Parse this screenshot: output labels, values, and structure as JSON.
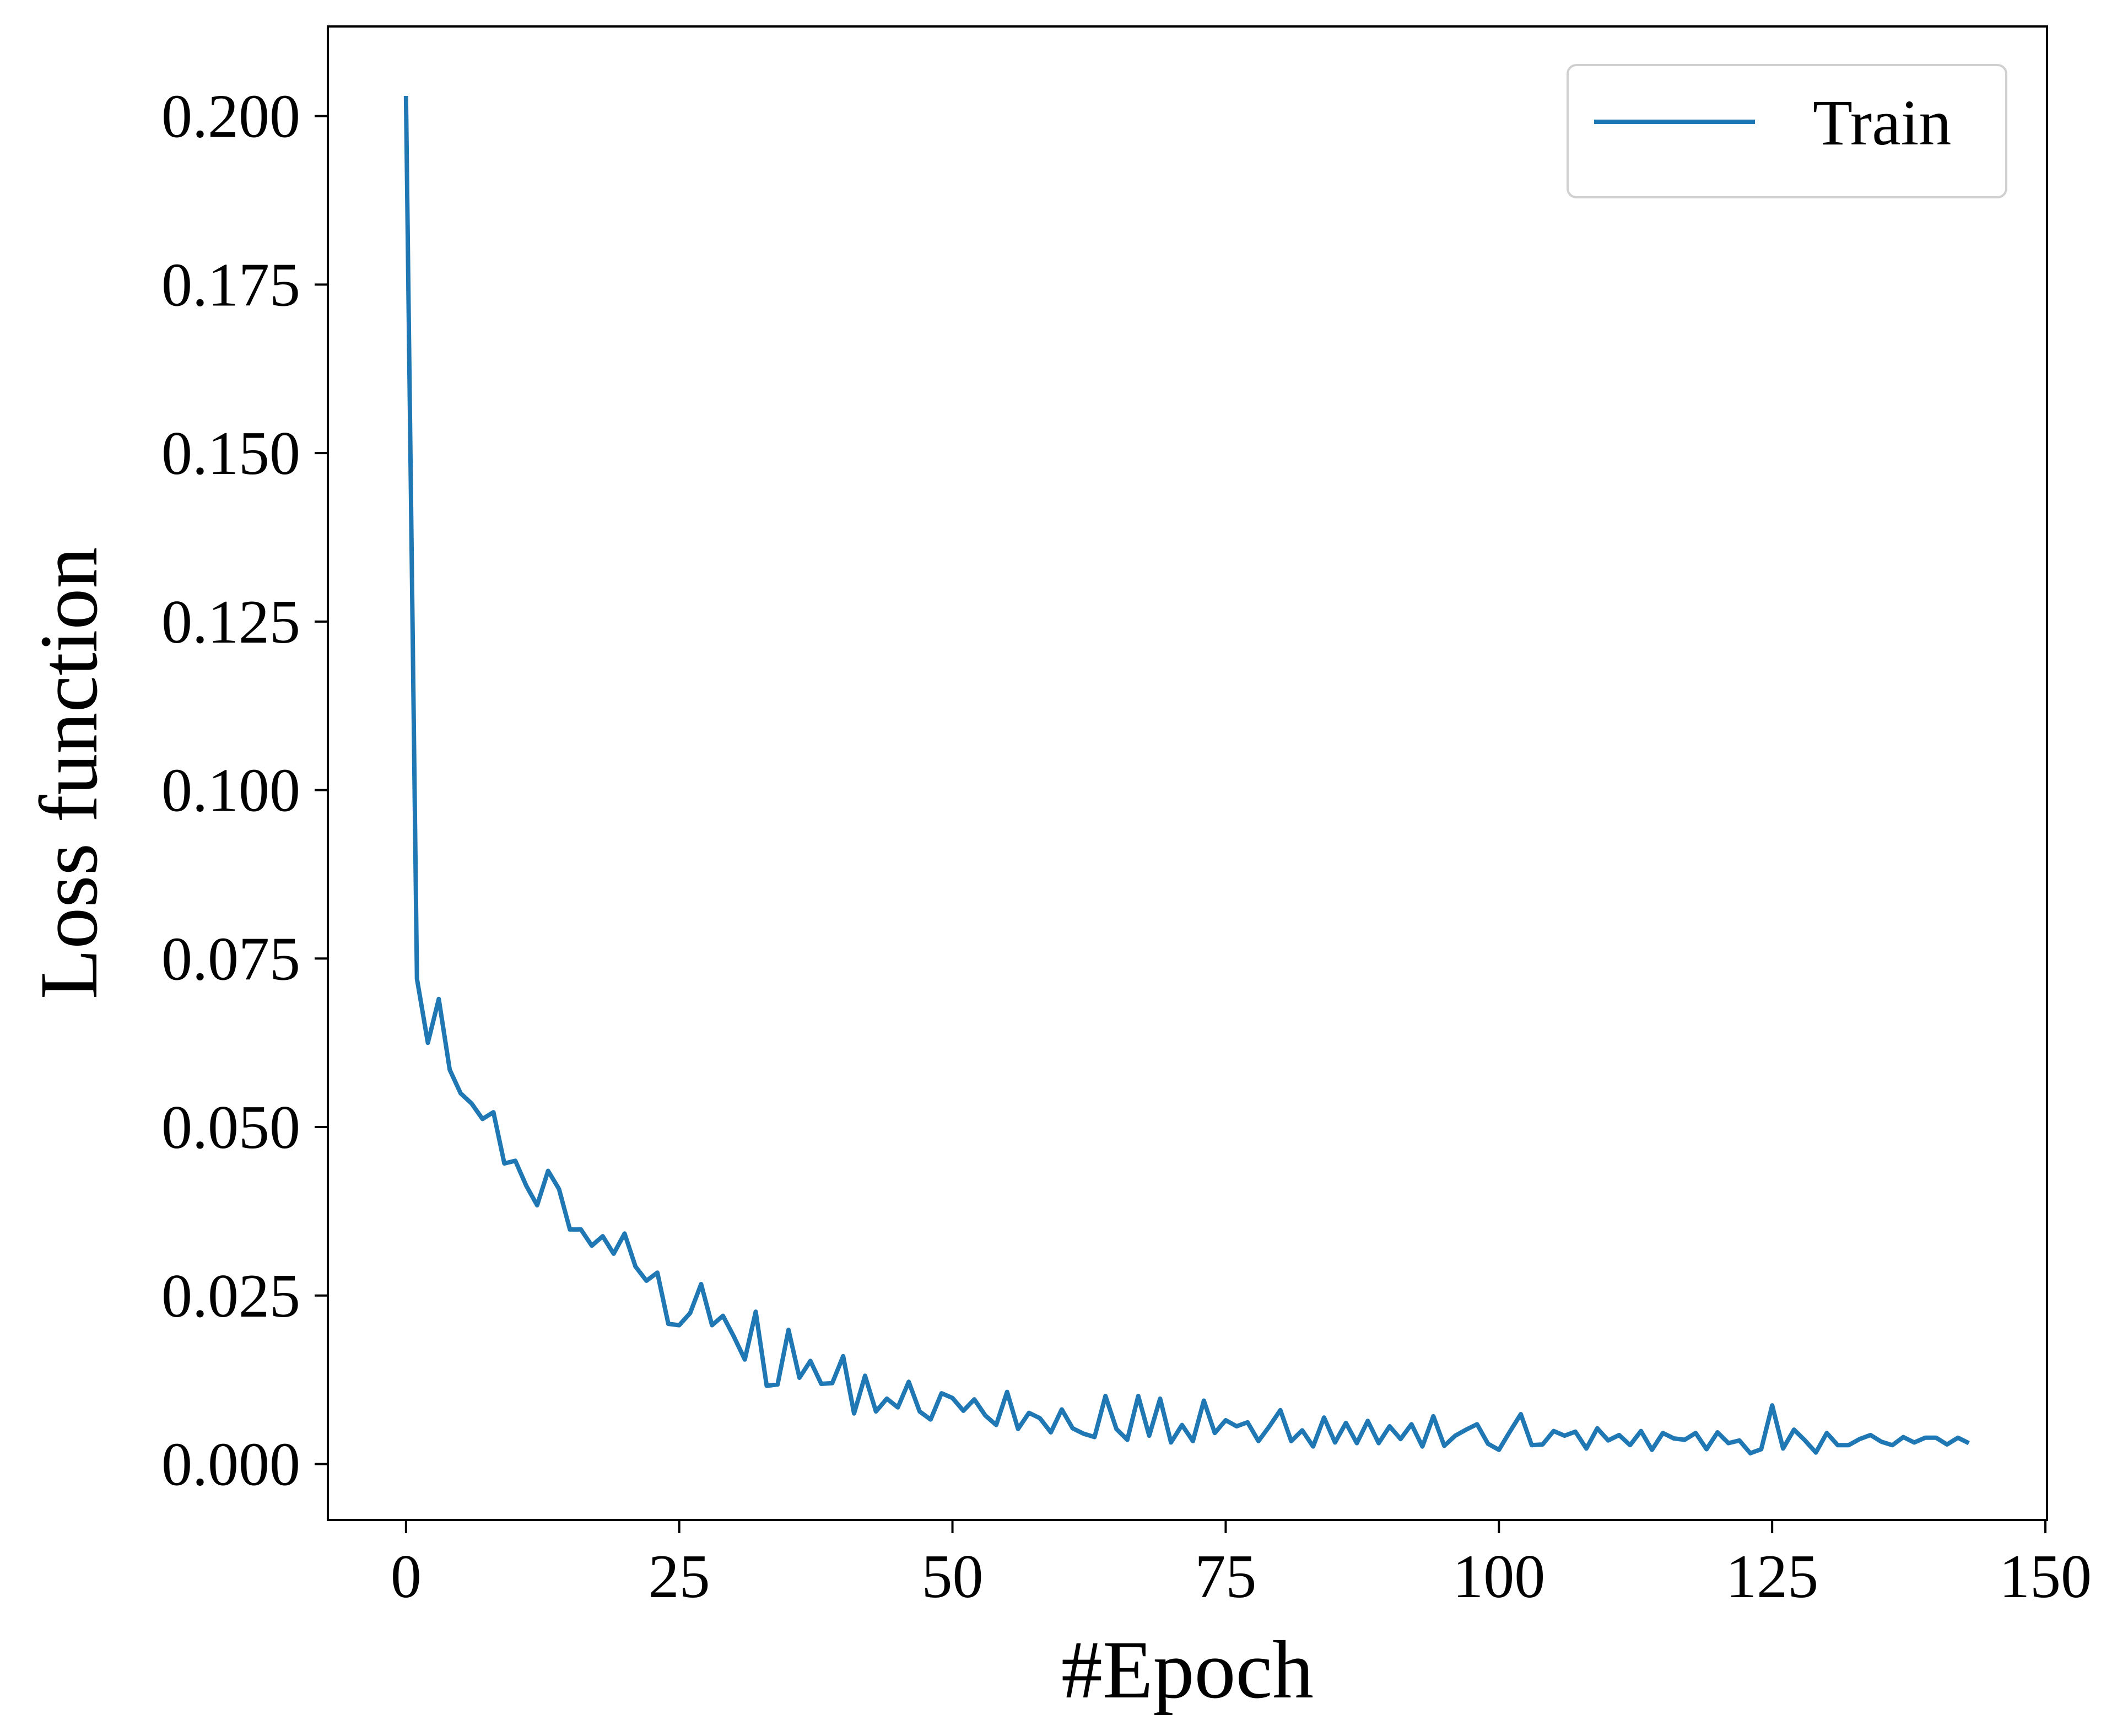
{
  "chart_data": {
    "type": "line",
    "xlabel": "#Epoch",
    "ylabel": "Loss function",
    "xlim": [
      -7.15,
      150.15
    ],
    "ylim": [
      -0.0083,
      0.2133
    ],
    "xticks": [
      0,
      25,
      50,
      75,
      100,
      125,
      150
    ],
    "xtick_labels": [
      "0",
      "25",
      "50",
      "75",
      "100",
      "125",
      "150"
    ],
    "yticks": [
      0.0,
      0.025,
      0.05,
      0.075,
      0.1,
      0.125,
      0.15,
      0.175,
      0.2
    ],
    "ytick_labels": [
      "0.000",
      "0.025",
      "0.050",
      "0.075",
      "0.100",
      "0.125",
      "0.150",
      "0.175",
      "0.200"
    ],
    "grid": false,
    "legend_position": "top-right",
    "series": [
      {
        "name": "Train",
        "color": "#1f77b4",
        "x": [
          0,
          1,
          2,
          3,
          4,
          5,
          6,
          7,
          8,
          9,
          10,
          11,
          12,
          13,
          14,
          15,
          16,
          17,
          18,
          19,
          20,
          21,
          22,
          23,
          24,
          25,
          26,
          27,
          28,
          29,
          30,
          31,
          32,
          33,
          34,
          35,
          36,
          37,
          38,
          39,
          40,
          41,
          42,
          43,
          44,
          45,
          46,
          47,
          48,
          49,
          50,
          51,
          52,
          53,
          54,
          55,
          56,
          57,
          58,
          59,
          60,
          61,
          62,
          63,
          64,
          65,
          66,
          67,
          68,
          69,
          70,
          71,
          72,
          73,
          74,
          75,
          76,
          77,
          78,
          79,
          80,
          81,
          82,
          83,
          84,
          85,
          86,
          87,
          88,
          89,
          90,
          91,
          92,
          93,
          94,
          95,
          96,
          97,
          98,
          99,
          100,
          101,
          102,
          103,
          104,
          105,
          106,
          107,
          108,
          109,
          110,
          111,
          112,
          113,
          114,
          115,
          116,
          117,
          118,
          119,
          120,
          121,
          122,
          123,
          124,
          125,
          126,
          127,
          128,
          129,
          130,
          131,
          132,
          133,
          134,
          135,
          136,
          137,
          138,
          139,
          140,
          141,
          142,
          143
        ],
        "y": [
          0.203,
          0.072,
          0.0625,
          0.069,
          0.0585,
          0.055,
          0.0535,
          0.0512,
          0.0522,
          0.0446,
          0.045,
          0.0413,
          0.0384,
          0.0435,
          0.0408,
          0.0348,
          0.0348,
          0.0324,
          0.0338,
          0.0312,
          0.0342,
          0.0293,
          0.0272,
          0.0284,
          0.0208,
          0.0206,
          0.0224,
          0.0267,
          0.0206,
          0.022,
          0.0189,
          0.0155,
          0.0226,
          0.0116,
          0.0118,
          0.0199,
          0.0128,
          0.0153,
          0.0119,
          0.012,
          0.016,
          0.0075,
          0.0131,
          0.0078,
          0.0097,
          0.0084,
          0.0122,
          0.0078,
          0.0066,
          0.0105,
          0.0098,
          0.0079,
          0.0096,
          0.0072,
          0.0058,
          0.0107,
          0.0052,
          0.0076,
          0.0068,
          0.0047,
          0.0081,
          0.0053,
          0.0045,
          0.004,
          0.0101,
          0.0052,
          0.0036,
          0.0101,
          0.0042,
          0.0097,
          0.0032,
          0.0058,
          0.0034,
          0.0094,
          0.0046,
          0.0065,
          0.0056,
          0.0062,
          0.0034,
          0.0056,
          0.008,
          0.0034,
          0.005,
          0.0026,
          0.0069,
          0.0032,
          0.0061,
          0.0031,
          0.0064,
          0.0031,
          0.0056,
          0.0037,
          0.0059,
          0.0026,
          0.0071,
          0.0027,
          0.0042,
          0.0051,
          0.0059,
          0.003,
          0.0021,
          0.0048,
          0.0074,
          0.0028,
          0.0029,
          0.0049,
          0.0042,
          0.0048,
          0.0023,
          0.0053,
          0.0035,
          0.0043,
          0.0028,
          0.0049,
          0.0021,
          0.0046,
          0.0038,
          0.0036,
          0.0046,
          0.0022,
          0.0047,
          0.0031,
          0.0035,
          0.0016,
          0.0022,
          0.0087,
          0.0023,
          0.0051,
          0.0035,
          0.0017,
          0.0046,
          0.0028,
          0.0028,
          0.0037,
          0.0043,
          0.0033,
          0.0028,
          0.004,
          0.0032,
          0.0039,
          0.0039,
          0.0029,
          0.0039,
          0.0031
        ]
      }
    ]
  }
}
